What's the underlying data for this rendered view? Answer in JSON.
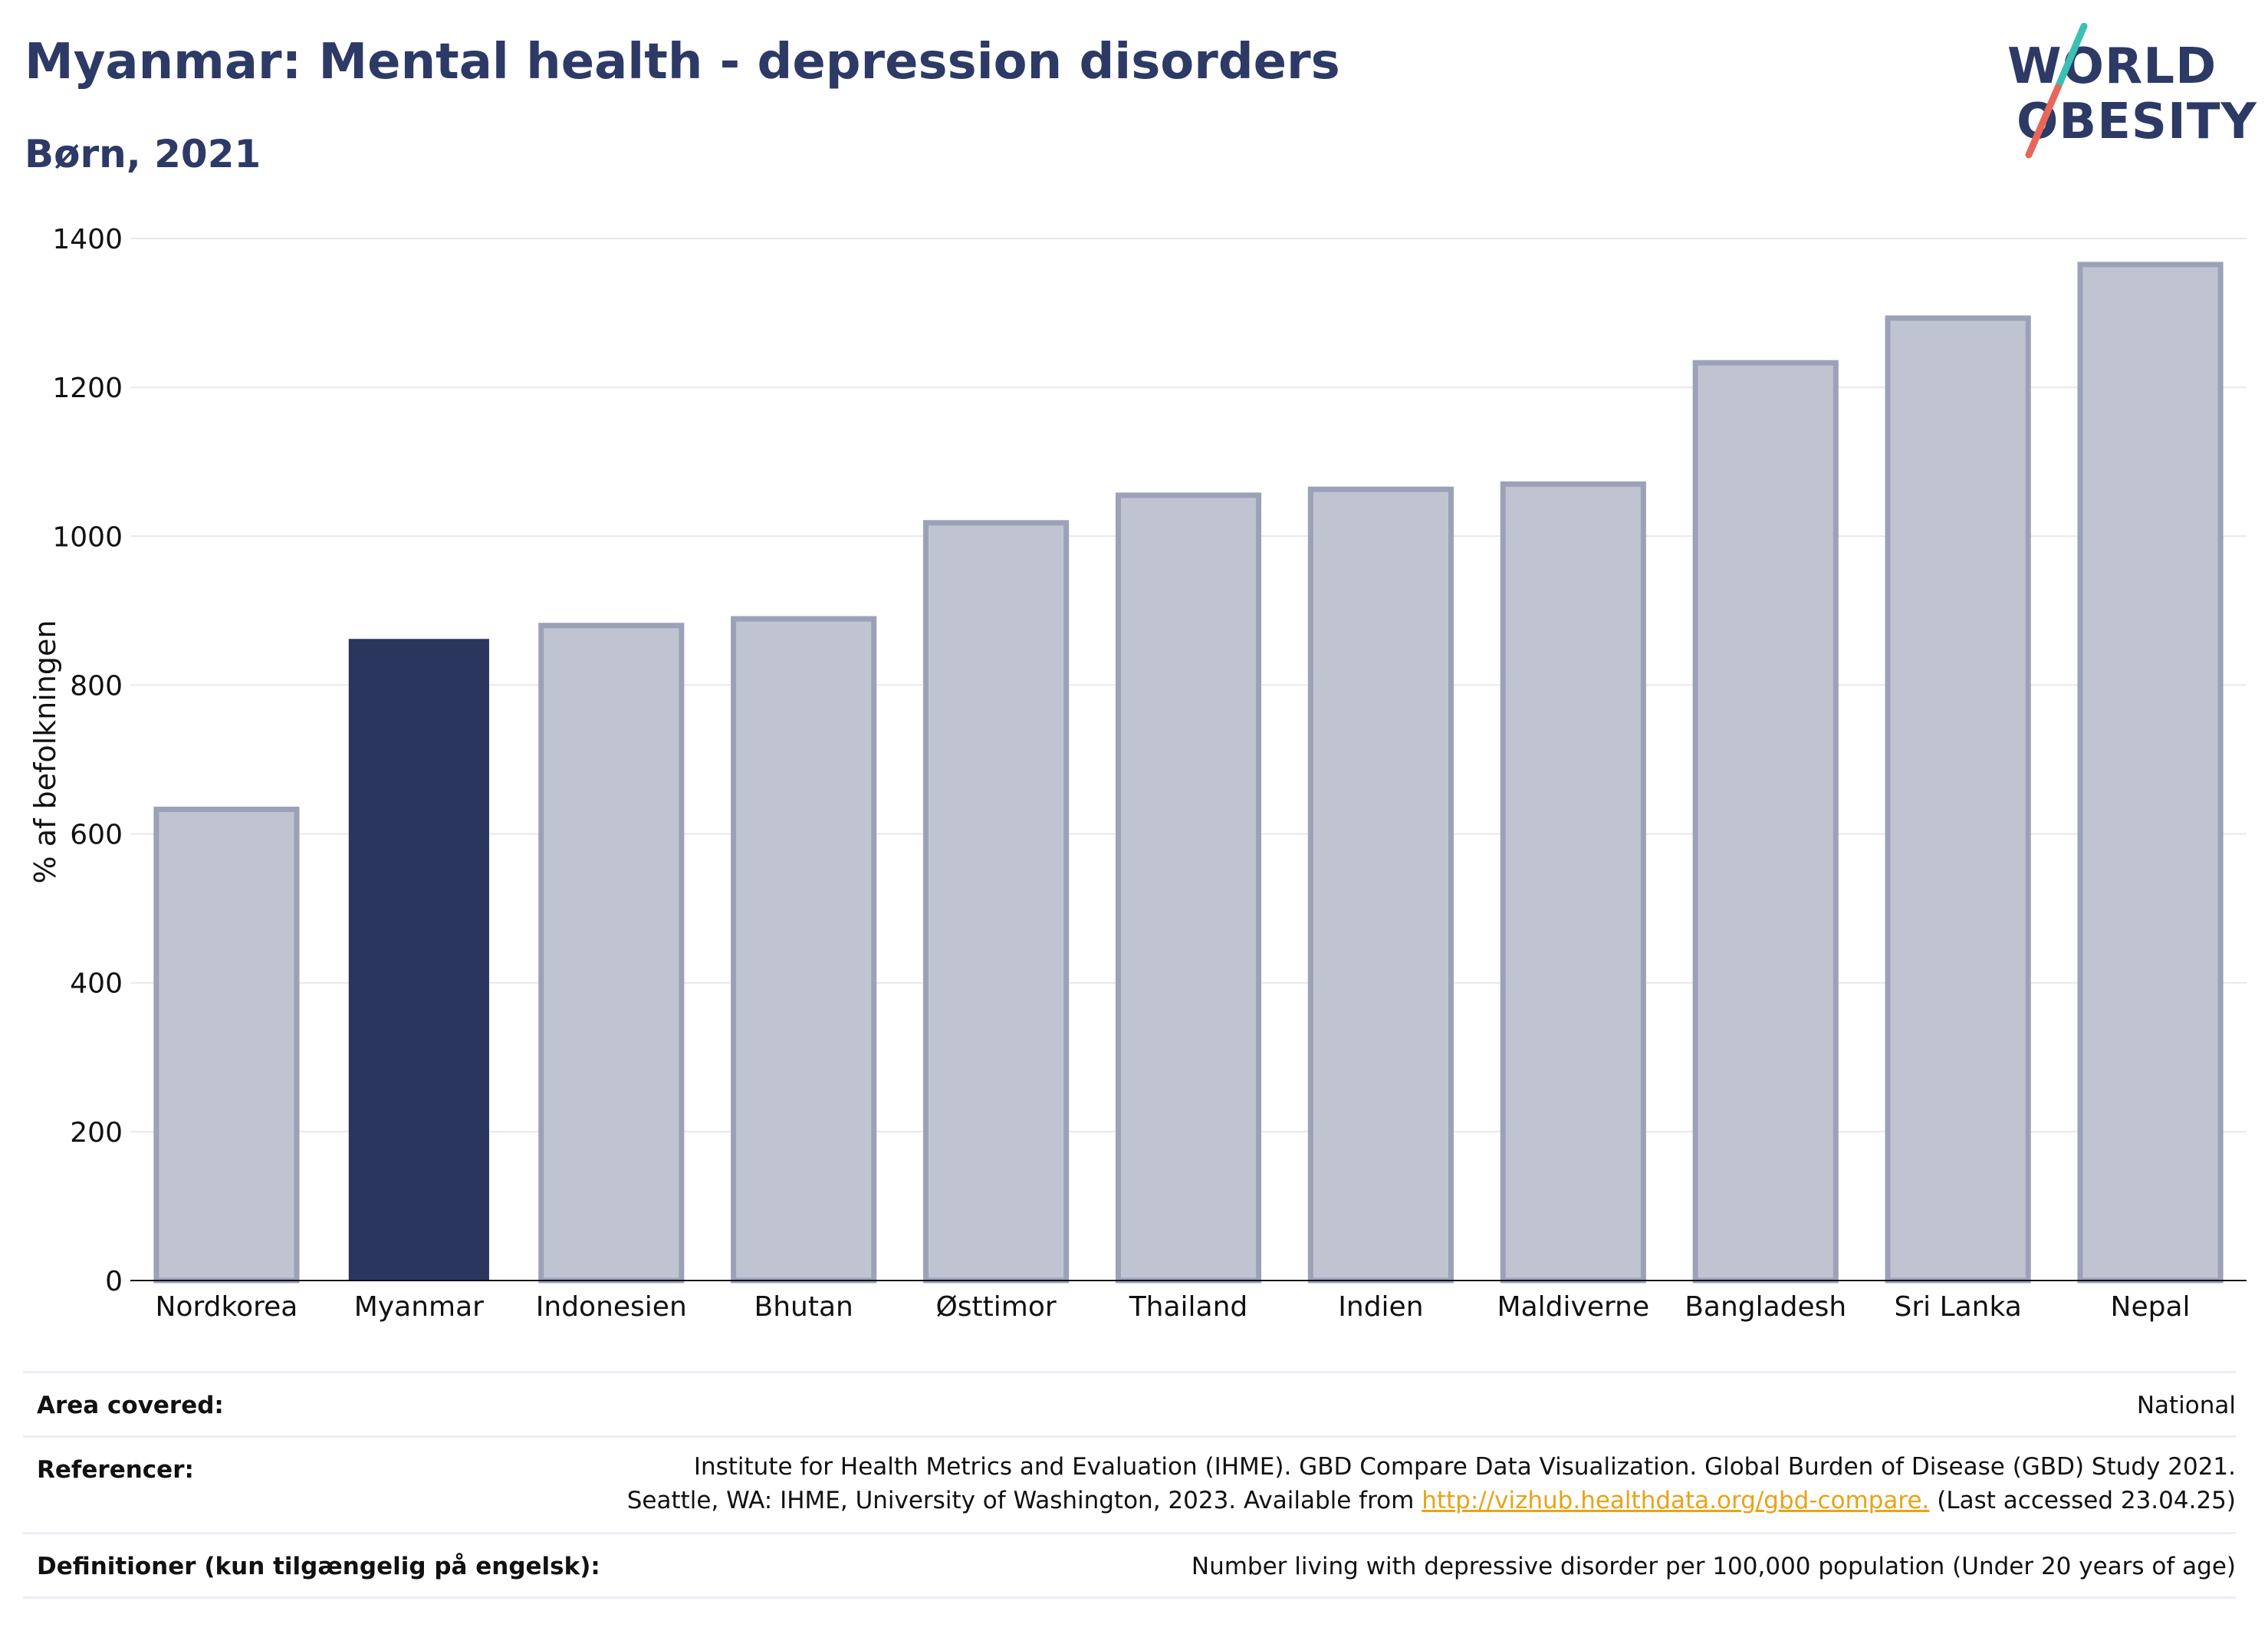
{
  "header": {
    "title": "Myanmar: Mental health - depression disorders",
    "subtitle": "Børn, 2021"
  },
  "logo": {
    "line1": "WORLD",
    "line2": "OBESITY",
    "accent_colors": [
      "#3cbfb4",
      "#e8675a"
    ]
  },
  "chart_data": {
    "type": "bar",
    "categories": [
      "Nordkorea",
      "Myanmar",
      "Indonesien",
      "Bhutan",
      "Østtimor",
      "Thailand",
      "Indien",
      "Maldiverne",
      "Bangladesh",
      "Sri Lanka",
      "Nepal"
    ],
    "values": [
      633,
      862,
      880,
      889,
      1018,
      1055,
      1063,
      1070,
      1233,
      1293,
      1365
    ],
    "highlight": "Myanmar",
    "title": "",
    "xlabel": "",
    "ylabel": "% af befolkningen",
    "ylim": [
      0,
      1400
    ],
    "yticks": [
      0,
      200,
      400,
      600,
      800,
      1000,
      1200,
      1400
    ],
    "grid": true,
    "colors": {
      "highlight": "#2b365f",
      "other_fill": "#c0c4d1",
      "other_stroke": "#9ba2b8"
    }
  },
  "info": {
    "area_label": "Area covered:",
    "area_value": "National",
    "ref_label": "Referencer:",
    "ref_line1": "Institute for Health Metrics and Evaluation (IHME). GBD Compare Data Visualization. Global Burden of Disease (GBD) Study 2021.",
    "ref_line2_pre": "Seattle, WA: IHME, University of Washington, 2023. Available from ",
    "ref_link": "http://vizhub.healthdata.org/gbd-compare.",
    "ref_line2_post": " (Last accessed 23.04.25)",
    "def_label": "Definitioner (kun tilgængelig på engelsk):",
    "def_value": "Number living with depressive disorder per 100,000 population (Under 20 years of age)"
  }
}
